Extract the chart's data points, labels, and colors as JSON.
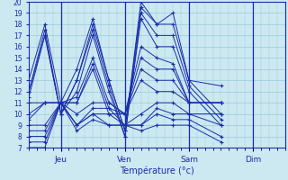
{
  "xlabel": "Température (°c)",
  "bg_color": "#cce8f0",
  "line_color": "#1a2eaa",
  "grid_color": "#99ccdd",
  "x_ticks": [
    0.333,
    1.0,
    1.667,
    2.333
  ],
  "x_tick_labels": [
    "Jeu",
    "Ven",
    "Sam",
    "Dim"
  ],
  "ylim": [
    7,
    20
  ],
  "xlim": [
    0,
    2.667
  ],
  "yticks": [
    7,
    8,
    9,
    10,
    11,
    12,
    13,
    14,
    15,
    16,
    17,
    18,
    19,
    20
  ],
  "series": [
    [
      0,
      13,
      0.167,
      18,
      0.333,
      11,
      0.5,
      14,
      0.667,
      18.5,
      0.833,
      13,
      1.0,
      8.5,
      1.167,
      20,
      1.333,
      18,
      1.5,
      19,
      1.667,
      13,
      2.0,
      12.5
    ],
    [
      0,
      12,
      0.167,
      17.5,
      0.333,
      10,
      0.5,
      13,
      0.667,
      18,
      0.833,
      13,
      1.0,
      8.5,
      1.167,
      19.5,
      1.333,
      18,
      1.5,
      18,
      1.667,
      13,
      2.0,
      10
    ],
    [
      0,
      12,
      0.167,
      17,
      0.333,
      10,
      0.5,
      13,
      0.667,
      17.5,
      0.833,
      12.5,
      1.0,
      8,
      1.167,
      19,
      1.333,
      17,
      1.5,
      17,
      1.667,
      12.5,
      2.0,
      9.5
    ],
    [
      0,
      11.5,
      0.167,
      17,
      0.333,
      10,
      0.5,
      12,
      0.667,
      17,
      0.833,
      12,
      1.0,
      8,
      1.167,
      18.5,
      1.333,
      16,
      1.5,
      16,
      1.667,
      12,
      2.0,
      9
    ],
    [
      0,
      11,
      0.167,
      11,
      0.333,
      11,
      0.5,
      11.5,
      0.667,
      15,
      0.833,
      11,
      1.0,
      10,
      1.167,
      16,
      1.333,
      15,
      1.5,
      14.5,
      1.667,
      11,
      2.0,
      11
    ],
    [
      0,
      10,
      0.167,
      11,
      0.333,
      11,
      0.5,
      11,
      0.667,
      14.5,
      0.833,
      10.5,
      1.0,
      10,
      1.167,
      15,
      1.333,
      14,
      1.5,
      14,
      1.667,
      11,
      2.0,
      11
    ],
    [
      0,
      9.5,
      0.167,
      11,
      0.333,
      11,
      0.5,
      11,
      0.667,
      14,
      0.833,
      10,
      1.0,
      10,
      1.167,
      14,
      1.333,
      13,
      1.5,
      13,
      1.667,
      11,
      2.0,
      11
    ],
    [
      0,
      9,
      0.167,
      9,
      0.333,
      11,
      0.5,
      10,
      0.667,
      11,
      0.833,
      11,
      1.0,
      10,
      1.167,
      13,
      1.333,
      12,
      1.5,
      12,
      1.667,
      11,
      2.0,
      11
    ],
    [
      0,
      8.5,
      0.167,
      8.5,
      0.333,
      11,
      0.5,
      9,
      0.667,
      10.5,
      0.833,
      10.5,
      1.0,
      9,
      1.167,
      10,
      1.333,
      11,
      1.5,
      11,
      1.667,
      10,
      2.0,
      10
    ],
    [
      0,
      8,
      0.167,
      8,
      0.333,
      11,
      0.5,
      9,
      0.667,
      10,
      0.833,
      10,
      1.0,
      9,
      1.167,
      9,
      1.333,
      10.5,
      1.5,
      10,
      1.667,
      10,
      2.0,
      9
    ],
    [
      0,
      7.5,
      0.167,
      7.5,
      0.333,
      11,
      0.5,
      9,
      0.667,
      10,
      0.833,
      9,
      1.0,
      9,
      1.167,
      9,
      1.333,
      10,
      1.5,
      9.5,
      1.667,
      9.5,
      2.0,
      8
    ],
    [
      0,
      7,
      0.167,
      7,
      0.333,
      11,
      0.5,
      8.5,
      0.667,
      9.5,
      0.833,
      9,
      1.0,
      9,
      1.167,
      8.5,
      1.333,
      9,
      1.5,
      9,
      1.667,
      9,
      2.0,
      7.5
    ]
  ],
  "vlines": [
    0.333,
    1.0,
    1.667,
    2.333
  ]
}
